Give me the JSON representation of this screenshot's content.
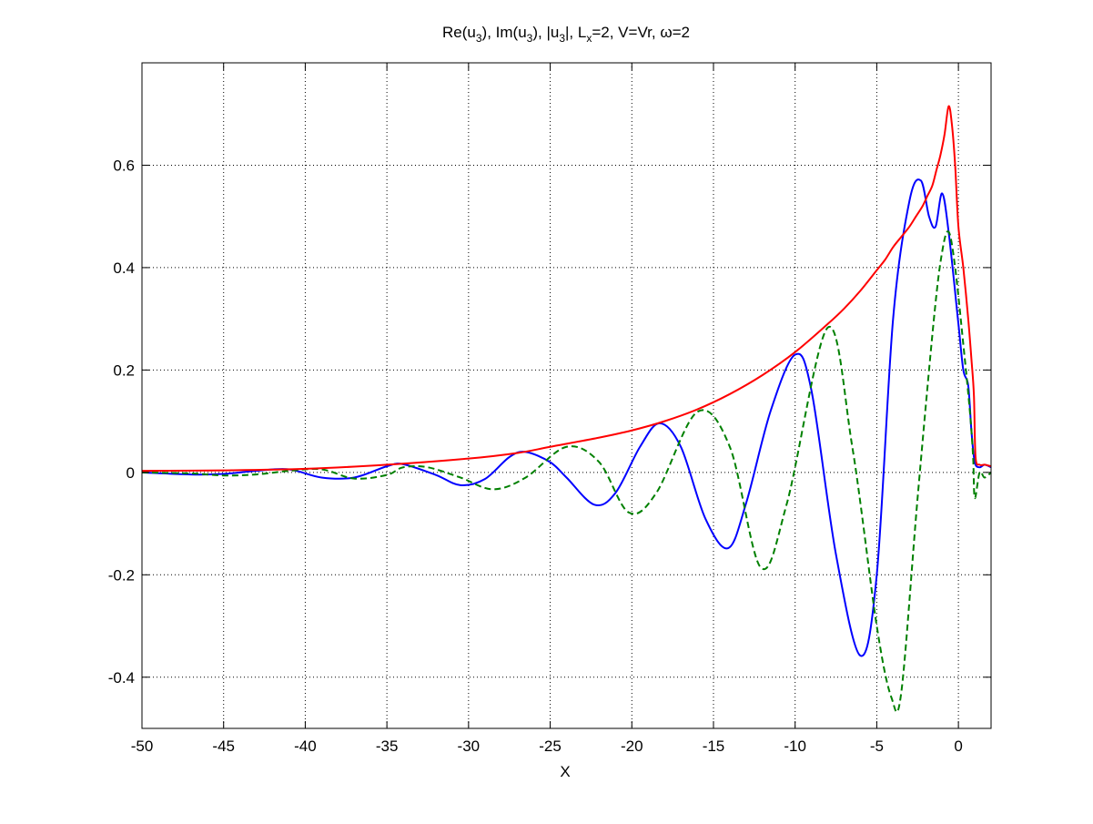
{
  "chart_data": {
    "type": "line",
    "title": "Re(u3), Im(u3), |u3|, Lx=2,  V=Vr, ω=2",
    "title_parts": {
      "p1": "Re(u",
      "s1": "3",
      "p2": "), Im(u",
      "s2": "3",
      "p3": "), |u",
      "s3": "3",
      "p4": "|, L",
      "s4": "x",
      "p5": "=2,  V=Vr, ω=2"
    },
    "xlabel": "X",
    "ylabel": "",
    "xlim": [
      -50,
      2
    ],
    "ylim": [
      -0.5,
      0.8
    ],
    "xticks": [
      -50,
      -45,
      -40,
      -35,
      -30,
      -25,
      -20,
      -15,
      -10,
      -5,
      0
    ],
    "xtick_labels": [
      "-50",
      "-45",
      "-40",
      "-35",
      "-30",
      "-25",
      "-20",
      "-15",
      "-10",
      "-5",
      "0"
    ],
    "yticks": [
      -0.4,
      -0.2,
      0,
      0.2,
      0.4,
      0.6
    ],
    "ytick_labels": [
      "-0.4",
      "-0.2",
      "0",
      "0.2",
      "0.4",
      "0.6"
    ],
    "grid": true,
    "series": [
      {
        "color": "#0000ff",
        "dash": "solid",
        "x": [
          -50,
          -47,
          -45,
          -43,
          -41,
          -39,
          -37,
          -35,
          -34,
          -32,
          -30.5,
          -29,
          -27.5,
          -26.5,
          -25,
          -24,
          -22.3,
          -21,
          -19.5,
          -18.3,
          -17,
          -15.5,
          -14.1,
          -13,
          -11.5,
          -10,
          -9,
          -7.5,
          -6,
          -5,
          -4,
          -3,
          -2.3,
          -1.8,
          -1.4,
          -1.0,
          -0.6,
          0,
          0.3,
          0.6,
          0.8,
          1.0,
          1.3,
          1.6,
          2
        ],
        "y": [
          0,
          -0.004,
          -0.003,
          0.003,
          0.006,
          -0.01,
          -0.01,
          0.012,
          0.016,
          -0.005,
          -0.025,
          -0.013,
          0.03,
          0.04,
          0.02,
          -0.01,
          -0.063,
          -0.04,
          0.05,
          0.096,
          0.05,
          -0.09,
          -0.148,
          -0.06,
          0.12,
          0.23,
          0.16,
          -0.16,
          -0.358,
          -0.2,
          0.3,
          0.53,
          0.57,
          0.5,
          0.48,
          0.545,
          0.47,
          0.29,
          0.2,
          0.17,
          0.08,
          0.02,
          0.01,
          0.015,
          0.01
        ]
      },
      {
        "color": "#008000",
        "dash": "dashed",
        "x": [
          -50,
          -47,
          -45,
          -43,
          -41,
          -39,
          -37,
          -35,
          -34,
          -32.5,
          -30.5,
          -28.5,
          -26.5,
          -24,
          -22,
          -20.2,
          -18.5,
          -16,
          -14,
          -12.1,
          -10.5,
          -8,
          -6.5,
          -5,
          -4.1,
          -3.5,
          -2.5,
          -1.5,
          -1.0,
          -0.6,
          -0.2,
          0.3,
          0.7,
          0.9,
          1.0,
          1.3,
          1.6,
          2
        ],
        "y": [
          0,
          -0.002,
          -0.006,
          -0.004,
          0.003,
          0.006,
          -0.012,
          -0.005,
          0.01,
          0.01,
          -0.01,
          -0.033,
          -0.01,
          0.05,
          0.02,
          -0.078,
          -0.04,
          0.118,
          0.05,
          -0.186,
          -0.06,
          0.283,
          0.05,
          -0.3,
          -0.44,
          -0.43,
          -0.05,
          0.3,
          0.43,
          0.47,
          0.4,
          0.25,
          0.12,
          0.03,
          -0.05,
          0.0,
          -0.01,
          0.0
        ]
      },
      {
        "color": "#ff0000",
        "dash": "solid",
        "x": [
          -50,
          -45,
          -40,
          -35,
          -30,
          -27,
          -25,
          -22,
          -20,
          -18,
          -16,
          -14,
          -12,
          -10,
          -8,
          -7,
          -6,
          -5,
          -4.5,
          -4,
          -3.5,
          -3,
          -2.6,
          -2.2,
          -1.9,
          -1.6,
          -1.35,
          -1.1,
          -0.85,
          -0.6,
          -0.4,
          -0.2,
          0,
          0.3,
          0.6,
          0.8,
          0.95,
          1.05,
          1.3,
          1.6,
          2
        ],
        "y": [
          0.003,
          0.004,
          0.007,
          0.015,
          0.027,
          0.038,
          0.05,
          0.068,
          0.082,
          0.1,
          0.123,
          0.153,
          0.19,
          0.235,
          0.29,
          0.32,
          0.355,
          0.395,
          0.415,
          0.44,
          0.46,
          0.48,
          0.5,
          0.52,
          0.54,
          0.56,
          0.59,
          0.62,
          0.66,
          0.715,
          0.68,
          0.6,
          0.48,
          0.4,
          0.3,
          0.22,
          0.15,
          0.03,
          0.015,
          0.015,
          0.012
        ]
      }
    ]
  }
}
